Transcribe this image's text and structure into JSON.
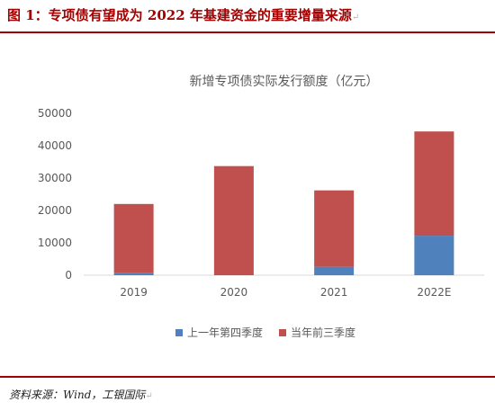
{
  "figure": {
    "title": "图 1：专项债有望成为 2022 年基建资金的重要增量来源",
    "title_mark": "↵",
    "source": "资料来源：Wind，工银国际",
    "source_mark": "↵"
  },
  "chart_data": {
    "type": "bar",
    "stacked": true,
    "title": "新增专项债实际发行额度（亿元）",
    "categories": [
      "2019",
      "2020",
      "2021",
      "2022E"
    ],
    "series": [
      {
        "name": "上一年第四季度",
        "values": [
          800,
          0,
          2600,
          12200
        ],
        "color": "#4f81bd"
      },
      {
        "name": "当年前三季度",
        "values": [
          21200,
          33700,
          23600,
          32200
        ],
        "color": "#c0504d"
      }
    ],
    "ylim": [
      0,
      50000
    ],
    "yticks": [
      0,
      10000,
      20000,
      30000,
      40000,
      50000
    ],
    "xlabel": "",
    "ylabel": "",
    "legend": "bottom",
    "grid": false
  }
}
